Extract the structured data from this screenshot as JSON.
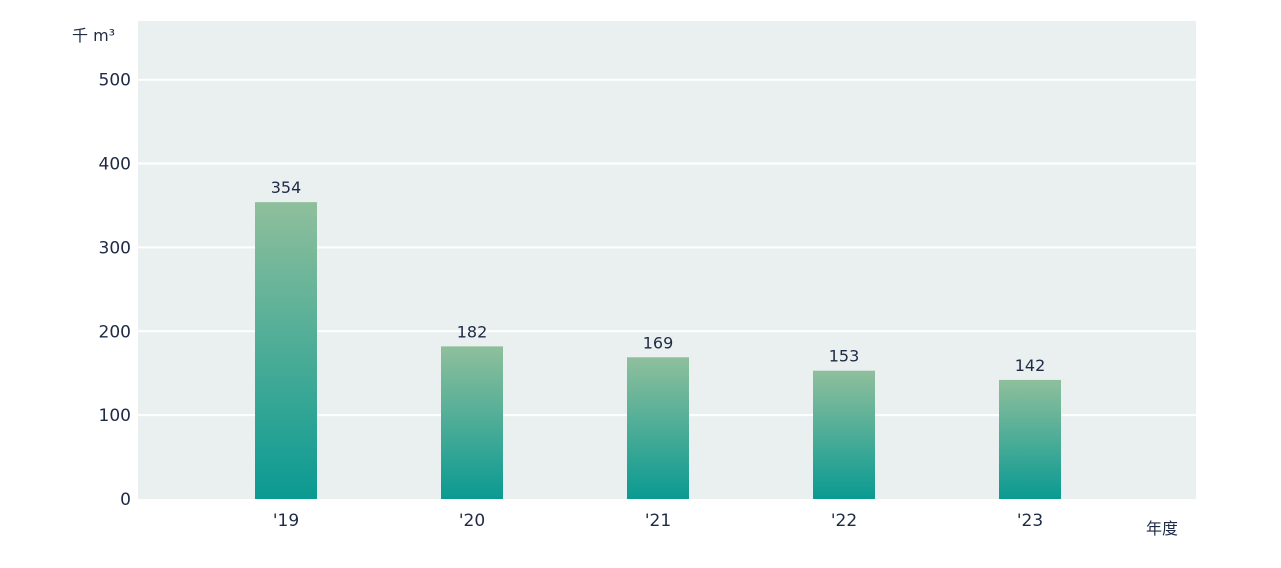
{
  "chart_data": {
    "type": "bar",
    "categories": [
      "'19",
      "'20",
      "'21",
      "'22",
      "'23"
    ],
    "values": [
      354,
      182,
      169,
      153,
      142
    ],
    "data_labels": [
      "354",
      "182",
      "169",
      "153",
      "142"
    ],
    "ylabel": "千 m³",
    "xlabel": "年度",
    "ylim": [
      0,
      570
    ],
    "yticks": [
      0,
      100,
      200,
      300,
      400,
      500
    ],
    "grid": true,
    "legend": "none",
    "colors": {
      "plot_background": "#e9f0ef",
      "gridline": "#ffffff",
      "bar_top": "#8fbf9c",
      "bar_bottom": "#0a9a92",
      "text": "#1f2a44"
    }
  }
}
